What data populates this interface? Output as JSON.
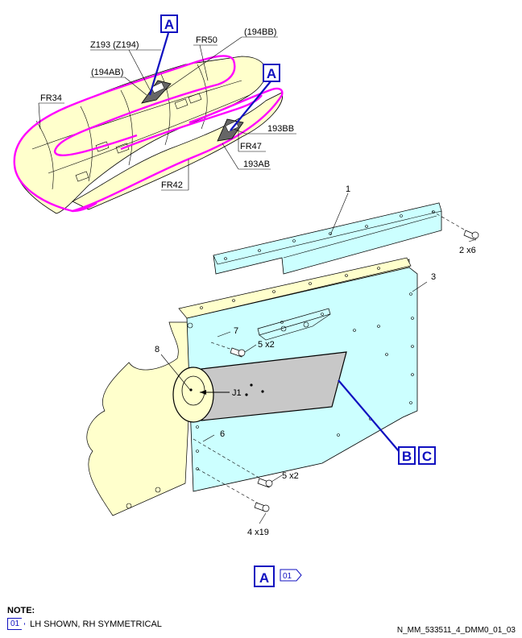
{
  "top_view": {
    "frame_labels": {
      "fr50": "FR50",
      "fr34": "FR34",
      "fr47": "FR47",
      "fr42": "FR42"
    },
    "zone_labels": {
      "z193": "Z193 (Z194)",
      "p194bb": "(194BB)",
      "p194ab": "(194AB)",
      "p193bb": "193BB",
      "p193ab": "193AB"
    },
    "callout_upper": "A",
    "callout_lower": "A"
  },
  "detail_view": {
    "items": {
      "i1": "1",
      "i3": "3",
      "i6": "6",
      "i7": "7",
      "i8": "8"
    },
    "quantities": {
      "q1": "2 x6",
      "q2": "5 x2",
      "q3": "5 x2",
      "q4": "4 x19"
    },
    "connector": "J1",
    "callout_b": "B",
    "callout_c": "C"
  },
  "view_title": {
    "letter": "A",
    "ref": "01"
  },
  "note": {
    "title": "NOTE:",
    "ref": "01",
    "text": "LH SHOWN, RH SYMMETRICAL"
  },
  "drawing_id": "N_MM_533511_4_DMM0_01_03",
  "colors": {
    "callout_blue": "#1010c0",
    "highlight_magenta": "#ff00ff",
    "panel_cyan": "#ccffff",
    "structure_cream": "#ffffcc",
    "cover_gray": "#c8c8c8"
  }
}
